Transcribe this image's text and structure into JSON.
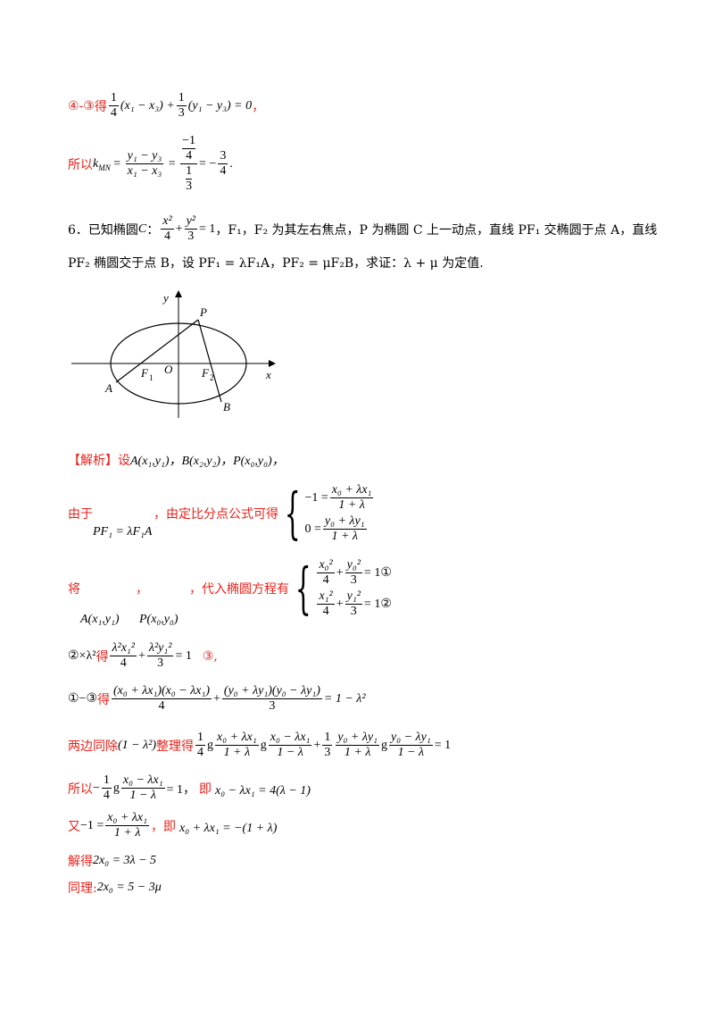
{
  "lines": {
    "l1_prefix": "④-③",
    "l1_de": "得",
    "l1_expr_a": "(x₁ − x₃) +",
    "l1_expr_b": "(y₁ − y₃) = 0",
    "l1_end": "，",
    "l2_prefix": "所以",
    "l2_k": "k",
    "l2_k_sub": "MN",
    "l2_frac_num": "y₁ − y₃",
    "l2_frac_den": "x₁ − x₃",
    "l2_end": "= −",
    "problem_num": "6．已知椭圆",
    "problem_c": "C",
    "problem_colon": "：",
    "problem_text1": "，F₁，F₂ 为其左右焦点，P 为椭圆 C 上一动点，直线 PF₁ 交椭圆于点 A，直线",
    "problem_text2": "PF₂ 椭圆交于点 B，设 PF₁ = λF₁A，PF₂ = μF₂B，求证：λ + μ 为定值.",
    "jiexi_label": "【解析】",
    "jiexi_she": "设",
    "jiexi_points": "A(x₁,y₁)，B(x₂,y₂)，P(x₀,y₀)，",
    "youyu": "由于",
    "youyu_vec": "PF₁ = λF₁A",
    "youyu_text": "，由定比分点公式可得",
    "sys1_r1_lhs": "−1 =",
    "sys1_r1_num": "x₀ + λx₁",
    "sys1_r1_den": "1 + λ",
    "sys1_r2_lhs": "0 =",
    "sys1_r2_num": "y₀ + λy₁",
    "sys1_r2_den": "1 + λ",
    "jiang": "将",
    "jiang_comma1": "，",
    "jiang_comma2": "，代入椭圆方程有",
    "jiang_A": "A(x₁,y₁)",
    "jiang_P": "P(x₀,y₀)",
    "sys2_r1": "= 1①",
    "sys2_r2": "= 1②",
    "eq3_prefix": "②×λ²",
    "eq3_de": "得",
    "eq3_rhs": "= 1",
    "eq3_tag": "③,",
    "eq4_prefix": "①−③",
    "eq4_de": "得",
    "eq4_num1": "(x₀ + λx₁)(x₀ − λx₁)",
    "eq4_den1": "4",
    "eq4_num2": "(y₀ + λy₁)(y₀ − λy₁)",
    "eq4_den2": "3",
    "eq4_rhs": "= 1 − λ²",
    "eq5_prefix": "两边同除",
    "eq5_div": "(1 − λ²)",
    "eq5_text": "整理得",
    "eq5_rhs": "= 1",
    "eq6_prefix": "所以",
    "eq6_mid": "= 1，",
    "eq6_ji": "即",
    "eq6_rhs": "x₀ − λx₁ = 4(λ − 1)",
    "eq7_prefix": "又",
    "eq7_lhs": "−1 =",
    "eq7_ji": "，即",
    "eq7_rhs": "x₀ + λx₁ = −(1 + λ)",
    "eq8_prefix": "解得",
    "eq8_expr": "2x₀ = 3λ − 5",
    "eq9_prefix": "同理:",
    "eq9_expr": "2x₀ = 5 − 3μ"
  },
  "figure": {
    "labels": [
      "y",
      "P",
      "O",
      "x",
      "F",
      "F",
      "A",
      "B"
    ],
    "subs": [
      "1",
      "2"
    ]
  }
}
